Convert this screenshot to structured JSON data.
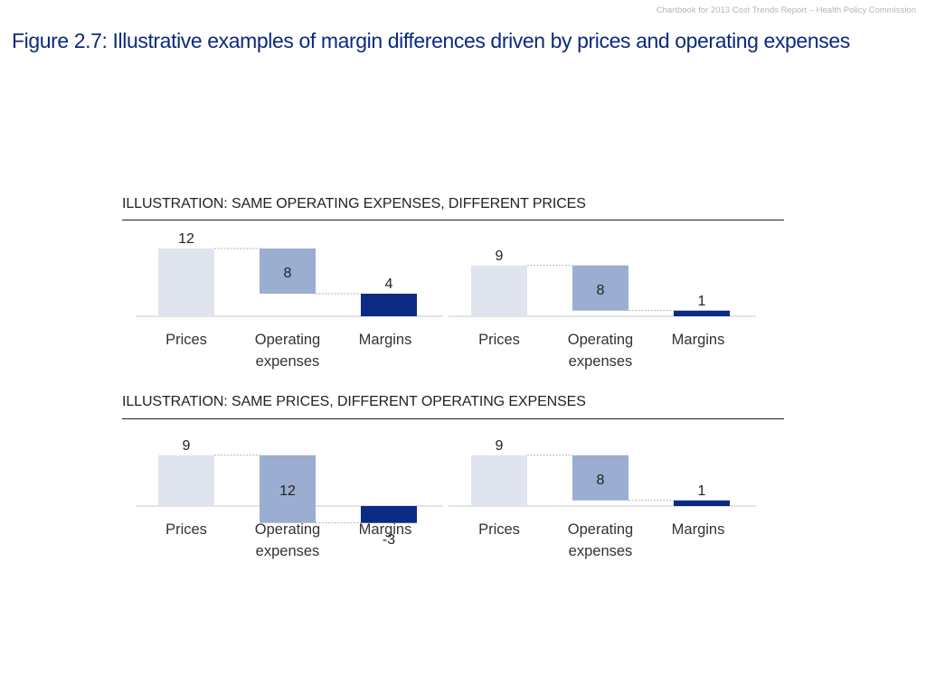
{
  "header": {
    "source_note": "Chartbook for 2013 Cost Trends Report – Health Policy Commission",
    "title": "Figure 2.7: Illustrative examples of margin differences driven by prices and operating expenses"
  },
  "sections": [
    {
      "label": "ILLUSTRATION: SAME OPERATING EXPENSES, DIFFERENT PRICES"
    },
    {
      "label": "ILLUSTRATION: SAME PRICES, DIFFERENT OPERATING EXPENSES"
    }
  ],
  "colors": {
    "prices": "#dfe4ef",
    "operating_expenses": "#9badd0",
    "margins": "#0b2a84",
    "baseline": "#c8c8c8",
    "connector": "#9a9a9a"
  },
  "chart_data": [
    {
      "type": "bar",
      "variant": "waterfall",
      "categories": [
        "Prices",
        "Operating\nexpenses",
        "Margins"
      ],
      "values": [
        12,
        8,
        4
      ],
      "ylim": [
        -4,
        13
      ],
      "grid": false
    },
    {
      "type": "bar",
      "variant": "waterfall",
      "categories": [
        "Prices",
        "Operating\nexpenses",
        "Margins"
      ],
      "values": [
        9,
        8,
        1
      ],
      "ylim": [
        -4,
        13
      ],
      "grid": false
    },
    {
      "type": "bar",
      "variant": "waterfall",
      "categories": [
        "Prices",
        "Operating\nexpenses",
        "Margins"
      ],
      "values": [
        9,
        12,
        -3
      ],
      "ylim": [
        -4,
        13
      ],
      "grid": false
    },
    {
      "type": "bar",
      "variant": "waterfall",
      "categories": [
        "Prices",
        "Operating\nexpenses",
        "Margins"
      ],
      "values": [
        9,
        8,
        1
      ],
      "ylim": [
        -4,
        13
      ],
      "grid": false
    }
  ]
}
